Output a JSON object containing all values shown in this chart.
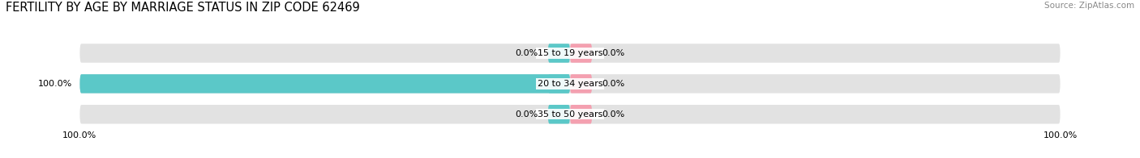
{
  "title": "FERTILITY BY AGE BY MARRIAGE STATUS IN ZIP CODE 62469",
  "source": "Source: ZipAtlas.com",
  "categories": [
    "15 to 19 years",
    "20 to 34 years",
    "35 to 50 years"
  ],
  "married": [
    0.0,
    100.0,
    0.0
  ],
  "unmarried": [
    0.0,
    0.0,
    0.0
  ],
  "married_color": "#5bc8c8",
  "unmarried_color": "#f4a0b0",
  "bar_bg_color": "#e2e2e2",
  "bar_height": 0.62,
  "xlim": 100.0,
  "title_fontsize": 10.5,
  "source_fontsize": 7.5,
  "label_fontsize": 8,
  "category_fontsize": 8,
  "legend_fontsize": 8,
  "background_color": "#ffffff",
  "axis_label_bottom_left": "100.0%",
  "axis_label_bottom_right": "100.0%"
}
